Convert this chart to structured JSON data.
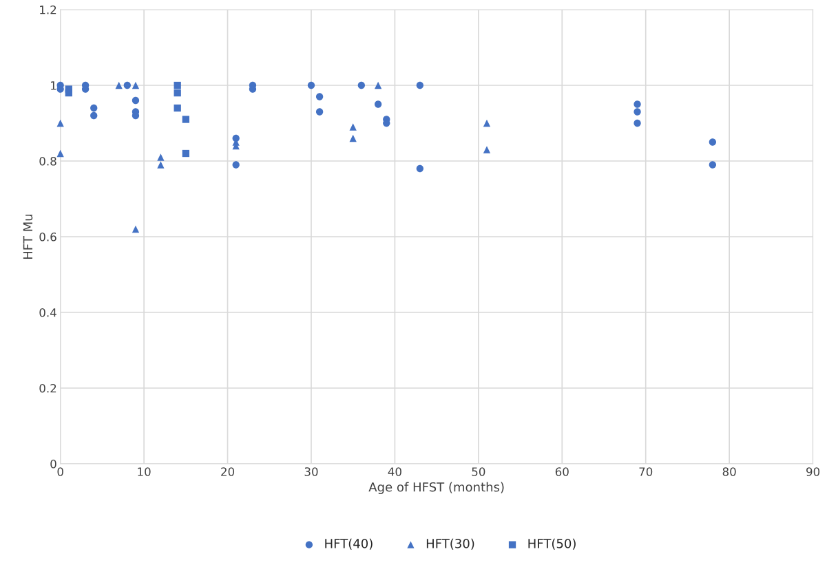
{
  "chart_data": {
    "type": "scatter",
    "xlabel": "Age of HFST (months)",
    "ylabel": "HFT Mu",
    "xlim": [
      0,
      90
    ],
    "xticks": [
      0,
      10,
      20,
      30,
      40,
      50,
      60,
      70,
      80,
      90
    ],
    "ylim": [
      0,
      1.2
    ],
    "yticks": [
      0,
      0.2,
      0.4,
      0.6,
      0.8,
      1,
      1.2
    ],
    "grid": true,
    "legend": "bottom",
    "series": [
      {
        "name": "HFT(40)",
        "color": "#4472c4",
        "marker": "circle",
        "x": [
          0,
          0,
          3,
          3,
          4,
          4,
          8,
          9,
          9,
          9,
          21,
          21,
          23,
          23,
          30,
          31,
          31,
          36,
          38,
          39,
          39,
          43,
          43,
          69,
          69,
          69,
          78,
          78
        ],
        "values": [
          1,
          0.99,
          1,
          0.99,
          0.94,
          0.92,
          1,
          0.96,
          0.93,
          0.92,
          0.86,
          0.79,
          1,
          0.99,
          1,
          0.97,
          0.93,
          1,
          0.95,
          0.91,
          0.9,
          1,
          0.78,
          0.95,
          0.93,
          0.9,
          0.85,
          0.79
        ]
      },
      {
        "name": "HFT(30)",
        "color": "#4472c4",
        "marker": "triangle",
        "x": [
          0,
          0,
          7,
          9,
          9,
          12,
          12,
          21,
          21,
          35,
          35,
          38,
          51,
          51
        ],
        "values": [
          0.9,
          0.82,
          1,
          1,
          0.62,
          0.81,
          0.79,
          0.85,
          0.84,
          0.89,
          0.86,
          1,
          0.9,
          0.83
        ]
      },
      {
        "name": "HFT(50)",
        "color": "#4472c4",
        "marker": "square",
        "x": [
          1,
          1,
          14,
          14,
          14,
          15,
          15
        ],
        "values": [
          0.99,
          0.98,
          1,
          0.98,
          0.94,
          0.91,
          0.82
        ]
      }
    ]
  }
}
